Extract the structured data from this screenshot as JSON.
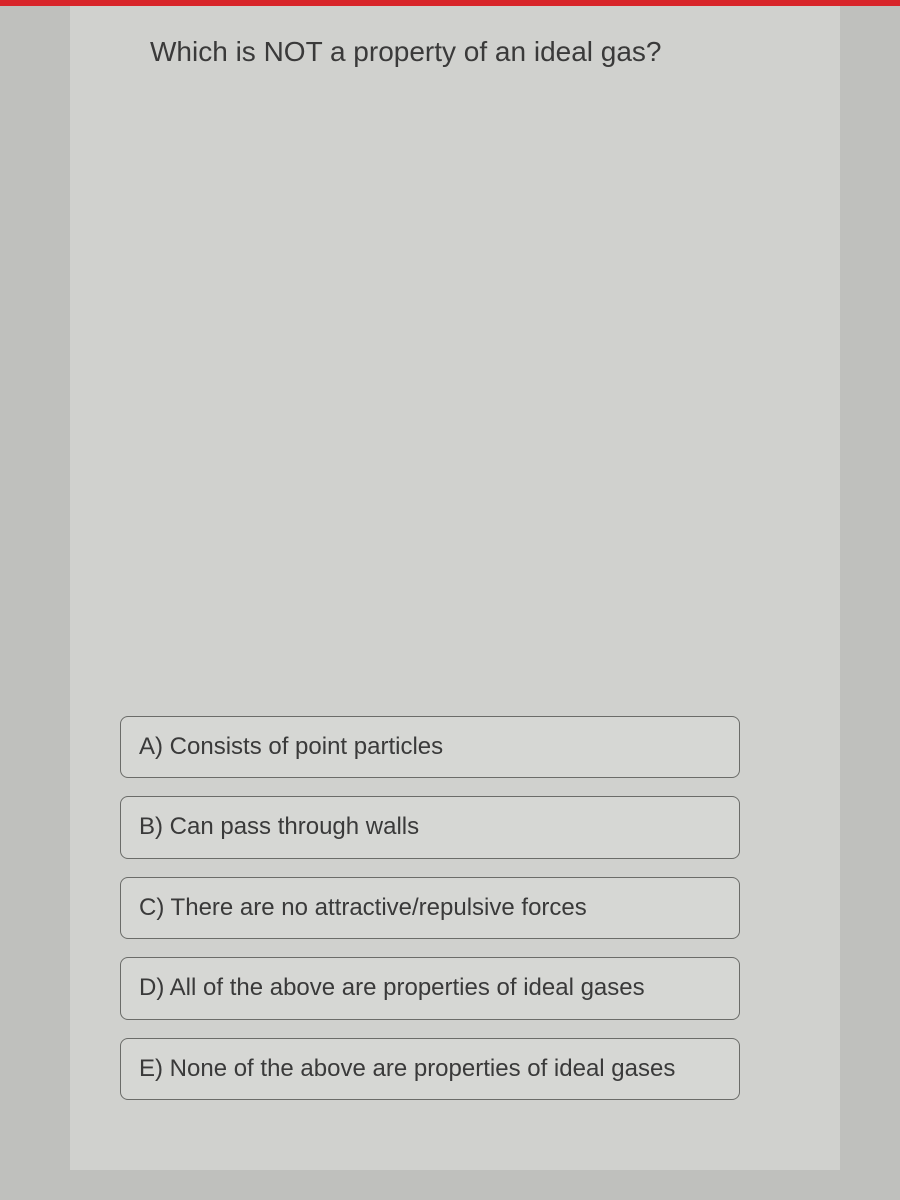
{
  "quiz": {
    "question": "Which is NOT a property of an ideal gas?",
    "answers": [
      {
        "label": "A) Consists of point particles"
      },
      {
        "label": "B) Can pass through walls"
      },
      {
        "label": "C) There are no attractive/repulsive forces"
      },
      {
        "label": "D) All of the above are properties of ideal gases"
      },
      {
        "label": "E) None of the above are properties of ideal gases"
      }
    ]
  },
  "style": {
    "page_background": "#bfc0bd",
    "panel_background": "#d0d1ce",
    "top_bar_color": "#d8252a",
    "option_background": "#d6d7d4",
    "option_border_color": "#6b6c69",
    "option_border_radius": 8,
    "text_color": "#3a3a3a",
    "question_fontsize": 28,
    "option_fontsize": 24,
    "option_width": 620
  }
}
